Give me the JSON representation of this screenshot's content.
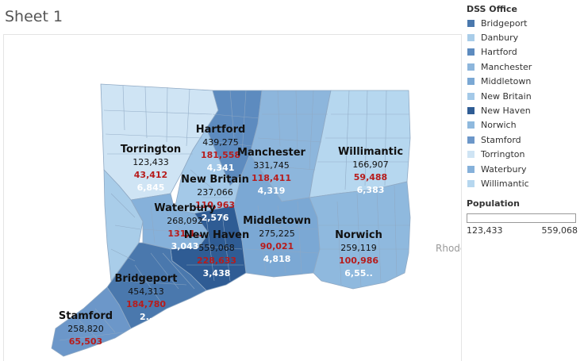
{
  "sheet_title": "Sheet 1",
  "offscreen_label": "Rhode",
  "legend": {
    "title": "DSS Office",
    "items": [
      {
        "label": "Bridgeport",
        "color": "#4a78ad"
      },
      {
        "label": "Danbury",
        "color": "#a9cde9"
      },
      {
        "label": "Hartford",
        "color": "#5d8bbf"
      },
      {
        "label": "Manchester",
        "color": "#8db6dc"
      },
      {
        "label": "Middletown",
        "color": "#7ba8d4"
      },
      {
        "label": "New Britain",
        "color": "#a4c9e8"
      },
      {
        "label": "New Haven",
        "color": "#2f5c94"
      },
      {
        "label": "Norwich",
        "color": "#8fb9de"
      },
      {
        "label": "Stamford",
        "color": "#6c97c9"
      },
      {
        "label": "Torrington",
        "color": "#cfe4f4"
      },
      {
        "label": "Waterbury",
        "color": "#86b1da"
      },
      {
        "label": "Willimantic",
        "color": "#b6d7ef"
      }
    ]
  },
  "population_legend": {
    "title": "Population",
    "min": "123,433",
    "max": "559,068"
  },
  "offices": [
    {
      "name": "Hartford",
      "population": "439,275",
      "red_value": "181,558",
      "white_value": "4,341"
    },
    {
      "name": "Torrington",
      "population": "123,433",
      "red_value": "43,412",
      "white_value": "6,845"
    },
    {
      "name": "Manchester",
      "population": "331,745",
      "red_value": "118,411",
      "white_value": "4,319"
    },
    {
      "name": "Willimantic",
      "population": "166,907",
      "red_value": "59,488",
      "white_value": "6,383"
    },
    {
      "name": "New Britain",
      "population": "237,066",
      "red_value": "110,963",
      "white_value": "2,576"
    },
    {
      "name": "Waterbury",
      "population": "268,092",
      "red_value": "131,1..",
      "white_value": "3,043"
    },
    {
      "name": "New Haven",
      "population": "559,068",
      "red_value": "228,633",
      "white_value": "3,438"
    },
    {
      "name": "Middletown",
      "population": "275,225",
      "red_value": "90,021",
      "white_value": "4,818"
    },
    {
      "name": "Norwich",
      "population": "259,119",
      "red_value": "100,986",
      "white_value": "6,55.."
    },
    {
      "name": "Bridgeport",
      "population": "454,313",
      "red_value": "184,780",
      "white_value": "2.."
    },
    {
      "name": "Stamford",
      "population": "258,820",
      "red_value": "65,503",
      "white_value": ""
    }
  ]
}
